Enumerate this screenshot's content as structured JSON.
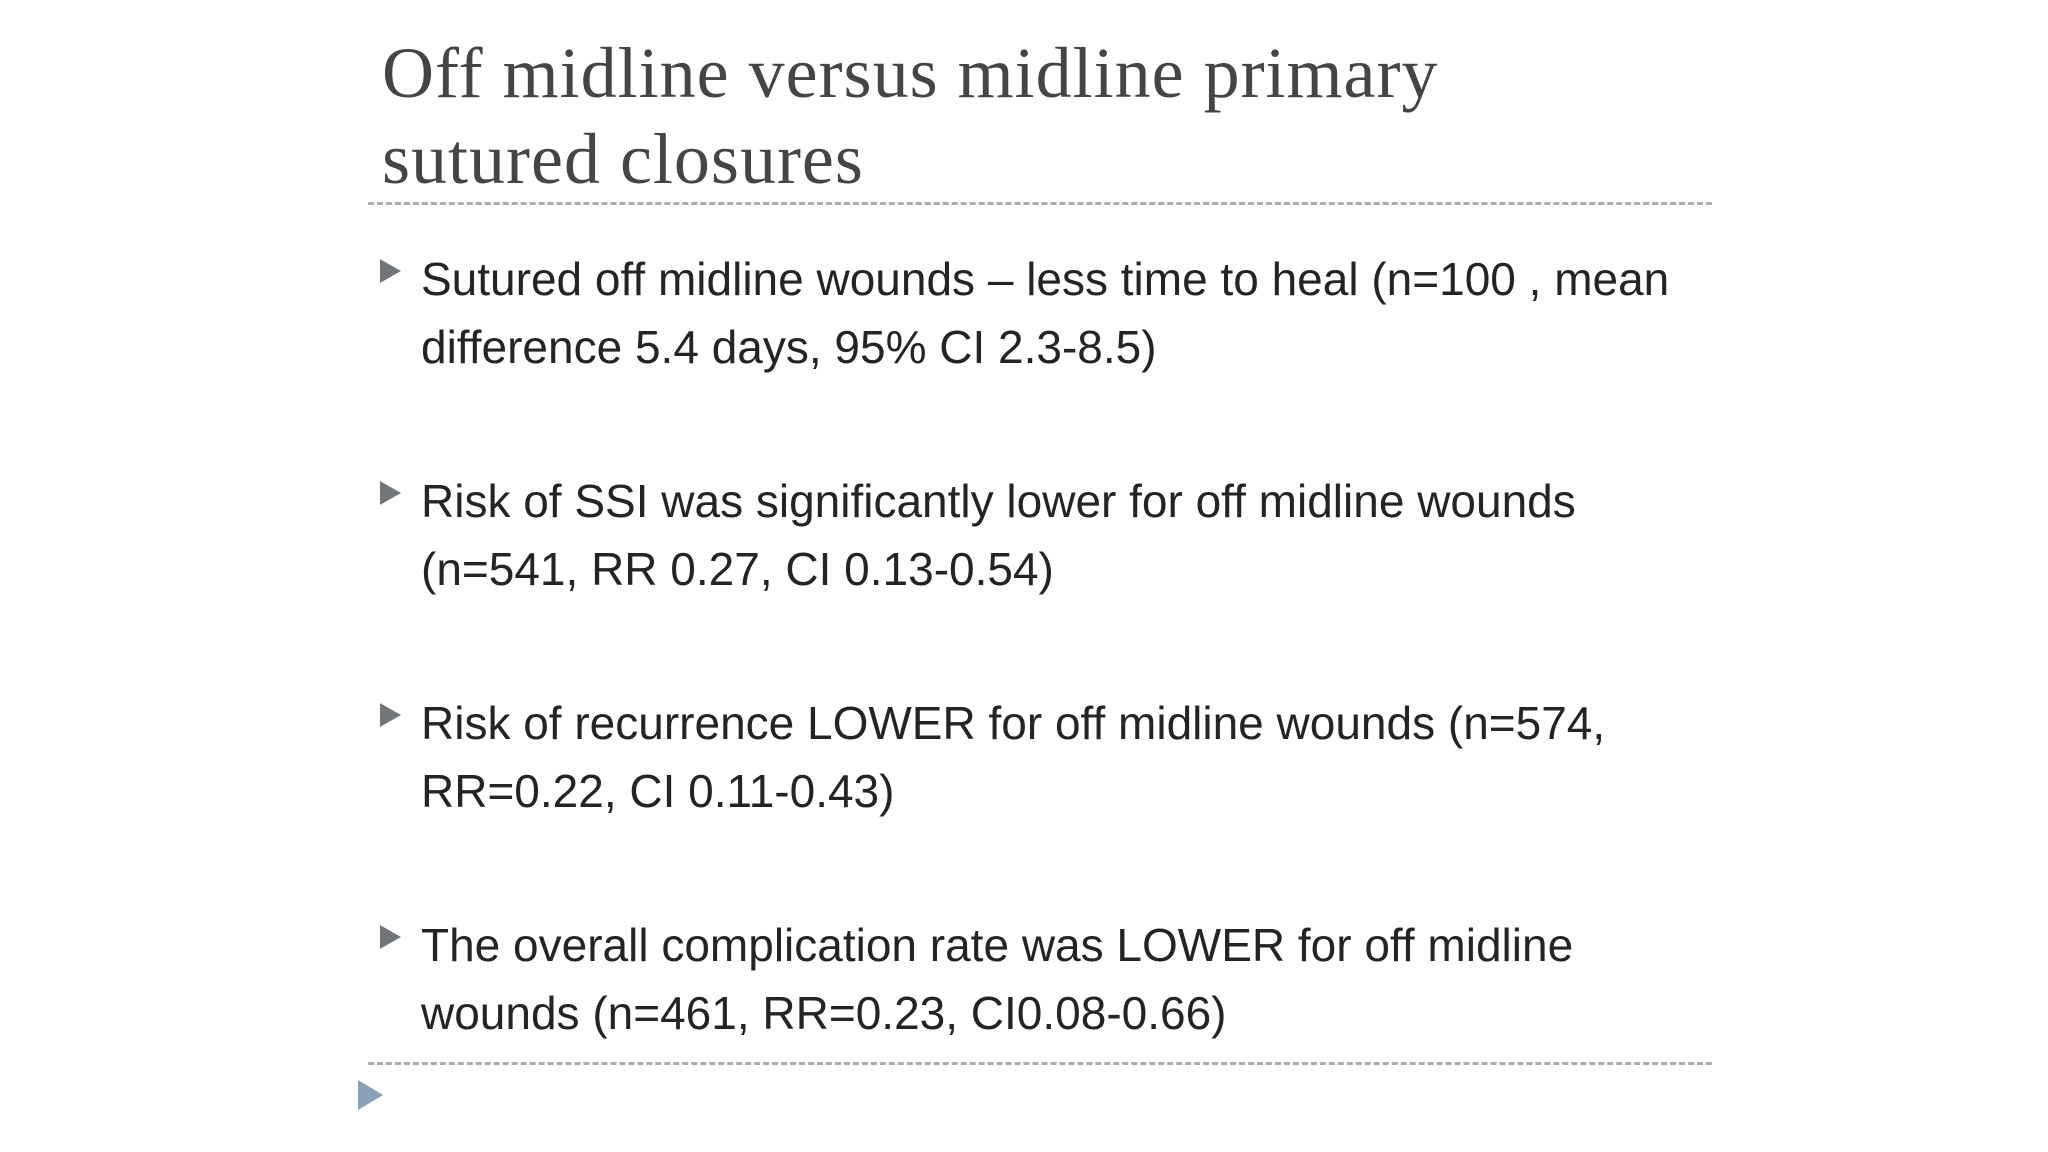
{
  "slide": {
    "title": {
      "line1": "Off midline versus midline primary",
      "line2": "sutured closures"
    },
    "bullets": [
      {
        "text": "Sutured off midline wounds – less time to heal (n=100 , mean difference 5.4 days, 95% CI 2.3-8.5)"
      },
      {
        "text": "Risk of SSI was significantly lower for off midline wounds (n=541, RR 0.27, CI 0.13-0.54)"
      },
      {
        "text": "Risk of recurrence LOWER for off midline wounds (n=574, RR=0.22, CI 0.11-0.43)"
      },
      {
        "text": "The overall complication rate was LOWER for off midline wounds (n=461, RR=0.23, CI0.08-0.66)"
      }
    ],
    "icons": {
      "bullet_marker": "triangle-right-icon",
      "footer_marker": "triangle-right-icon"
    },
    "colors": {
      "background": "#ffffff",
      "title_text": "#454545",
      "body_text": "#242424",
      "bullet_marker": "#72767c",
      "footer_marker": "#8ba1b8",
      "separator": "#98a0a8"
    }
  }
}
